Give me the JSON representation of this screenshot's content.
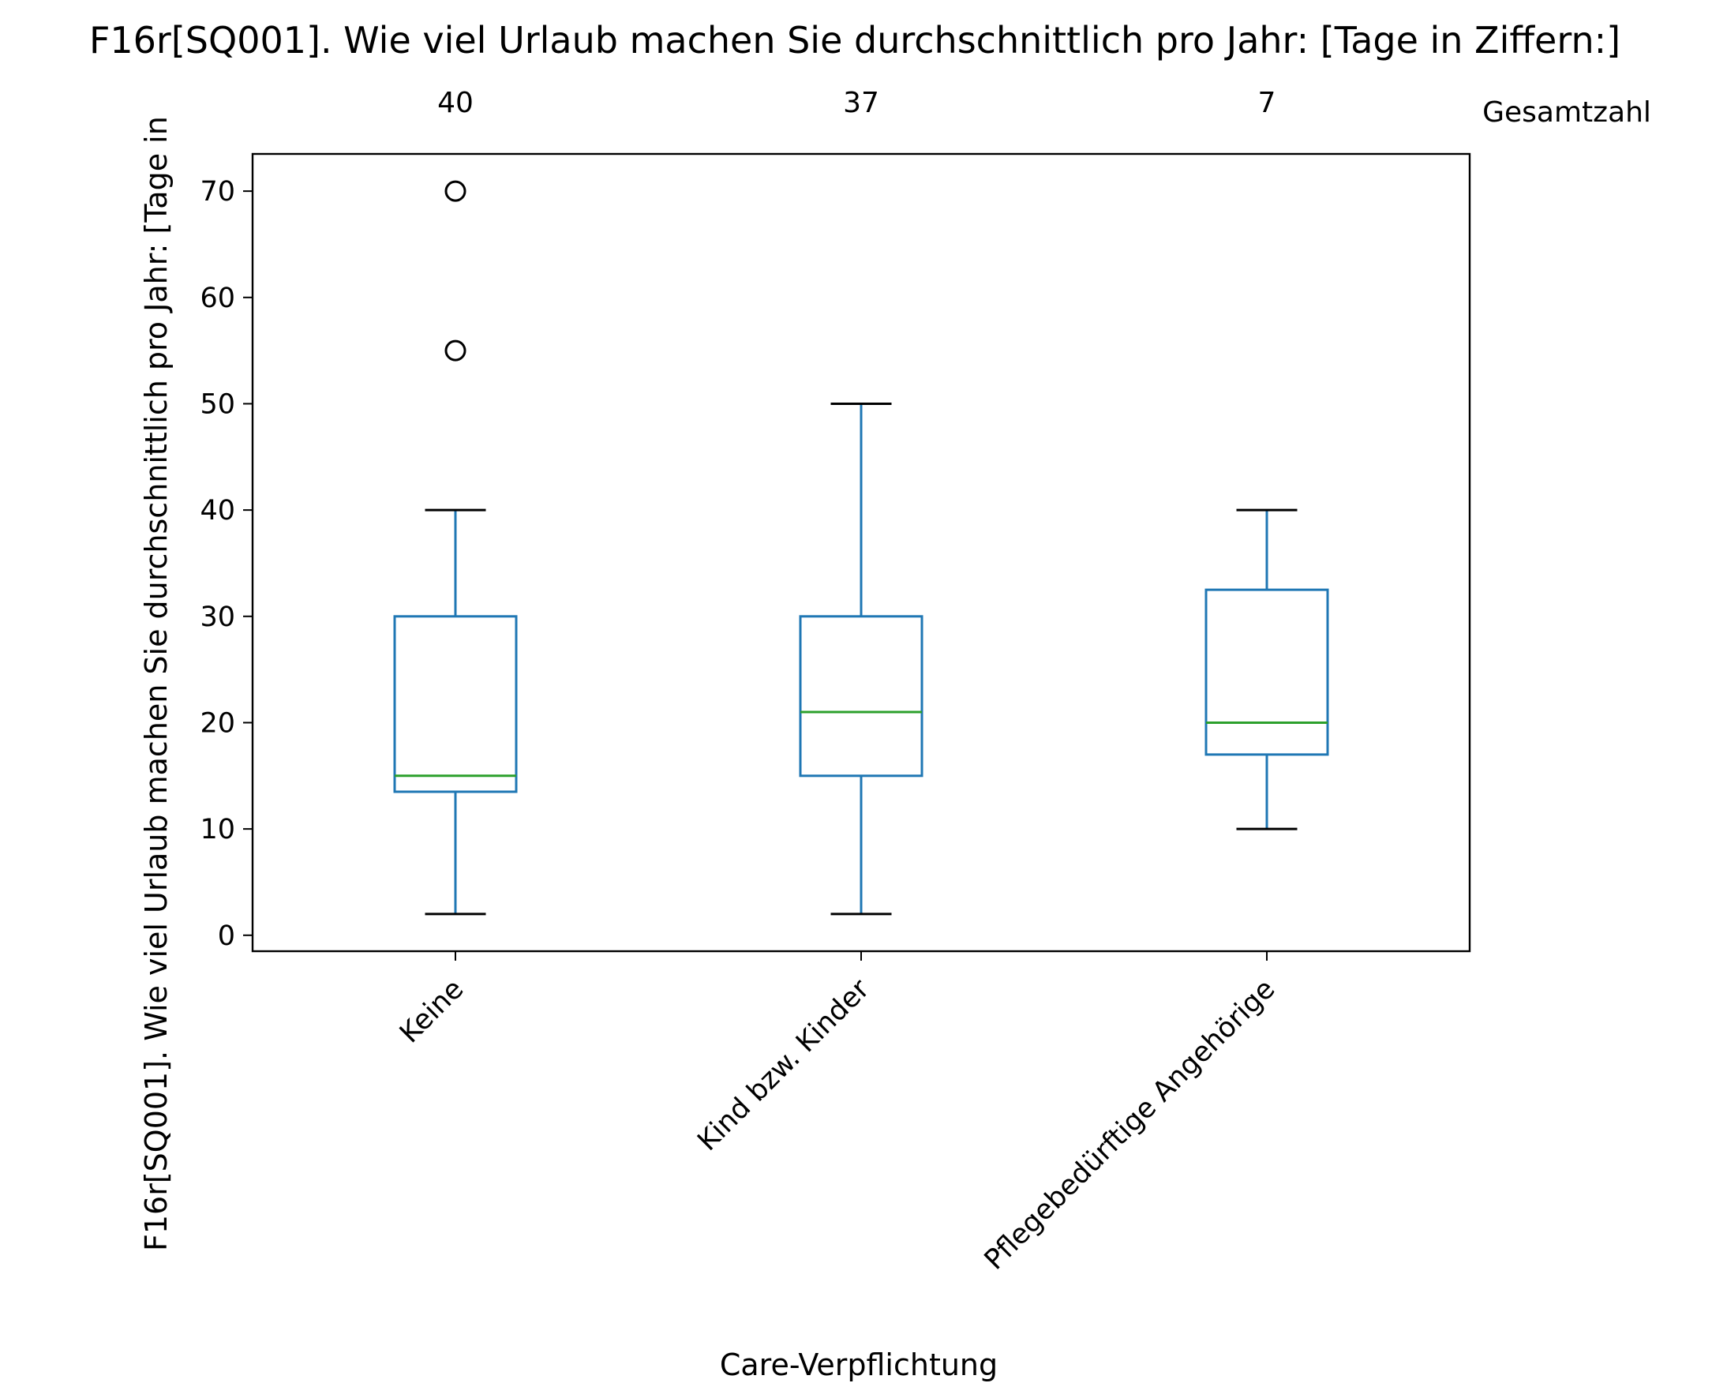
{
  "chart_data": {
    "type": "box",
    "title": "F16r[SQ001]. Wie viel Urlaub machen Sie durchschnittlich pro Jahr: [Tage in Ziffern:]",
    "xlabel": "Care-Verpflichtung",
    "ylabel": "F16r[SQ001]. Wie viel Urlaub machen Sie durchschnittlich pro Jahr: [Tage in",
    "ylim": [
      -1.5,
      73.5
    ],
    "yticks": [
      0,
      10,
      20,
      30,
      40,
      50,
      60,
      70
    ],
    "count_header": "Gesamtzahl",
    "grid": false,
    "colors": {
      "box": "#1f77b4",
      "median": "#2ca02c",
      "whisker_cap": "#000000",
      "flier": "#000000"
    },
    "categories": [
      "Keine",
      "Kind bzw. Kinder",
      "Pflegebedürftige Angehörige"
    ],
    "boxes": [
      {
        "category": "Keine",
        "count": "40",
        "whislo": 2,
        "q1": 13.5,
        "median": 15,
        "q3": 30,
        "whishi": 40,
        "fliers": [
          55,
          70
        ]
      },
      {
        "category": "Kind bzw. Kinder",
        "count": "37",
        "whislo": 2,
        "q1": 15,
        "median": 21,
        "q3": 30,
        "whishi": 50,
        "fliers": []
      },
      {
        "category": "Pflegebedürftige Angehörige",
        "count": "7",
        "whislo": 10,
        "q1": 17,
        "median": 20,
        "q3": 32.5,
        "whishi": 40,
        "fliers": []
      }
    ]
  }
}
